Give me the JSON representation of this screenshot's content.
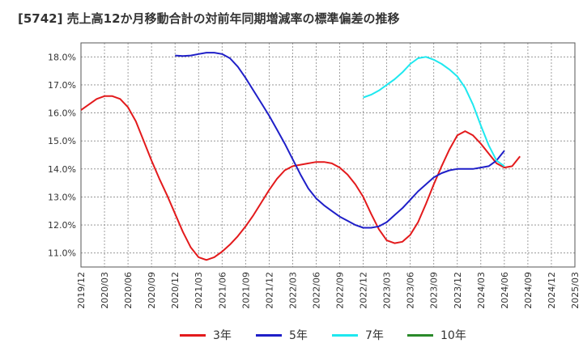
{
  "chart_data": {
    "type": "line",
    "title": "[5742]  売上高12か月移動合計の対前年同期増減率の標準偏差の推移",
    "x_tick_labels": [
      "2019/12",
      "2020/03",
      "2020/06",
      "2020/09",
      "2020/12",
      "2021/03",
      "2021/06",
      "2021/09",
      "2021/12",
      "2022/03",
      "2022/06",
      "2022/09",
      "2022/12",
      "2023/03",
      "2023/06",
      "2023/09",
      "2023/12",
      "2024/03",
      "2024/06",
      "2024/09",
      "2024/12",
      "2025/03"
    ],
    "y_tick_labels": [
      "11.0%",
      "12.0%",
      "13.0%",
      "14.0%",
      "15.0%",
      "16.0%",
      "17.0%",
      "18.0%"
    ],
    "ylim": [
      10.5,
      18.5
    ],
    "x_range": [
      "2019/12",
      "2025/03"
    ],
    "grid": true,
    "legend_position": "bottom",
    "series": [
      {
        "name": "3年",
        "color": "#e31a1c",
        "points": [
          [
            "2019/12",
            16.1
          ],
          [
            "2020/01",
            16.3
          ],
          [
            "2020/02",
            16.5
          ],
          [
            "2020/03",
            16.6
          ],
          [
            "2020/04",
            16.6
          ],
          [
            "2020/05",
            16.5
          ],
          [
            "2020/06",
            16.2
          ],
          [
            "2020/07",
            15.7
          ],
          [
            "2020/08",
            15.0
          ],
          [
            "2020/09",
            14.3
          ],
          [
            "2020/10",
            13.65
          ],
          [
            "2020/11",
            13.05
          ],
          [
            "2020/12",
            12.4
          ],
          [
            "2021/01",
            11.75
          ],
          [
            "2021/02",
            11.2
          ],
          [
            "2021/03",
            10.85
          ],
          [
            "2021/04",
            10.75
          ],
          [
            "2021/05",
            10.85
          ],
          [
            "2021/06",
            11.05
          ],
          [
            "2021/07",
            11.3
          ],
          [
            "2021/08",
            11.6
          ],
          [
            "2021/09",
            11.95
          ],
          [
            "2021/10",
            12.35
          ],
          [
            "2021/11",
            12.8
          ],
          [
            "2021/12",
            13.25
          ],
          [
            "2022/01",
            13.65
          ],
          [
            "2022/02",
            13.95
          ],
          [
            "2022/03",
            14.1
          ],
          [
            "2022/04",
            14.15
          ],
          [
            "2022/05",
            14.2
          ],
          [
            "2022/06",
            14.25
          ],
          [
            "2022/07",
            14.25
          ],
          [
            "2022/08",
            14.2
          ],
          [
            "2022/09",
            14.05
          ],
          [
            "2022/10",
            13.8
          ],
          [
            "2022/11",
            13.45
          ],
          [
            "2022/12",
            13.0
          ],
          [
            "2023/01",
            12.4
          ],
          [
            "2023/02",
            11.85
          ],
          [
            "2023/03",
            11.45
          ],
          [
            "2023/04",
            11.35
          ],
          [
            "2023/05",
            11.4
          ],
          [
            "2023/06",
            11.65
          ],
          [
            "2023/07",
            12.1
          ],
          [
            "2023/08",
            12.75
          ],
          [
            "2023/09",
            13.45
          ],
          [
            "2023/10",
            14.1
          ],
          [
            "2023/11",
            14.7
          ],
          [
            "2023/12",
            15.2
          ],
          [
            "2024/01",
            15.35
          ],
          [
            "2024/02",
            15.2
          ],
          [
            "2024/03",
            14.9
          ],
          [
            "2024/04",
            14.55
          ],
          [
            "2024/05",
            14.2
          ],
          [
            "2024/06",
            14.05
          ],
          [
            "2024/07",
            14.1
          ],
          [
            "2024/08",
            14.45
          ]
        ]
      },
      {
        "name": "5年",
        "color": "#1f1fc8",
        "points": [
          [
            "2020/12",
            18.05
          ],
          [
            "2021/01",
            18.03
          ],
          [
            "2021/02",
            18.05
          ],
          [
            "2021/03",
            18.1
          ],
          [
            "2021/04",
            18.15
          ],
          [
            "2021/05",
            18.15
          ],
          [
            "2021/06",
            18.1
          ],
          [
            "2021/07",
            17.95
          ],
          [
            "2021/08",
            17.65
          ],
          [
            "2021/09",
            17.25
          ],
          [
            "2021/10",
            16.8
          ],
          [
            "2021/11",
            16.35
          ],
          [
            "2021/12",
            15.9
          ],
          [
            "2022/01",
            15.4
          ],
          [
            "2022/02",
            14.9
          ],
          [
            "2022/03",
            14.35
          ],
          [
            "2022/04",
            13.8
          ],
          [
            "2022/05",
            13.3
          ],
          [
            "2022/06",
            12.95
          ],
          [
            "2022/07",
            12.7
          ],
          [
            "2022/08",
            12.5
          ],
          [
            "2022/09",
            12.3
          ],
          [
            "2022/10",
            12.15
          ],
          [
            "2022/11",
            12.0
          ],
          [
            "2022/12",
            11.9
          ],
          [
            "2023/01",
            11.9
          ],
          [
            "2023/02",
            11.95
          ],
          [
            "2023/03",
            12.1
          ],
          [
            "2023/04",
            12.35
          ],
          [
            "2023/05",
            12.6
          ],
          [
            "2023/06",
            12.9
          ],
          [
            "2023/07",
            13.2
          ],
          [
            "2023/08",
            13.45
          ],
          [
            "2023/09",
            13.7
          ],
          [
            "2023/10",
            13.85
          ],
          [
            "2023/11",
            13.95
          ],
          [
            "2023/12",
            14.0
          ],
          [
            "2024/01",
            14.0
          ],
          [
            "2024/02",
            14.0
          ],
          [
            "2024/03",
            14.05
          ],
          [
            "2024/04",
            14.1
          ],
          [
            "2024/05",
            14.3
          ],
          [
            "2024/06",
            14.65
          ]
        ]
      },
      {
        "name": "7年",
        "color": "#1ee8ef",
        "points": [
          [
            "2022/12",
            16.55
          ],
          [
            "2023/01",
            16.65
          ],
          [
            "2023/02",
            16.8
          ],
          [
            "2023/03",
            17.0
          ],
          [
            "2023/04",
            17.2
          ],
          [
            "2023/05",
            17.45
          ],
          [
            "2023/06",
            17.75
          ],
          [
            "2023/07",
            17.95
          ],
          [
            "2023/08",
            18.0
          ],
          [
            "2023/09",
            17.9
          ],
          [
            "2023/10",
            17.75
          ],
          [
            "2023/11",
            17.55
          ],
          [
            "2023/12",
            17.3
          ],
          [
            "2024/01",
            16.9
          ],
          [
            "2024/02",
            16.3
          ],
          [
            "2024/03",
            15.55
          ],
          [
            "2024/04",
            14.85
          ],
          [
            "2024/05",
            14.3
          ],
          [
            "2024/06",
            14.1
          ]
        ]
      },
      {
        "name": "10年",
        "color": "#2a8a2a",
        "points": []
      }
    ]
  }
}
